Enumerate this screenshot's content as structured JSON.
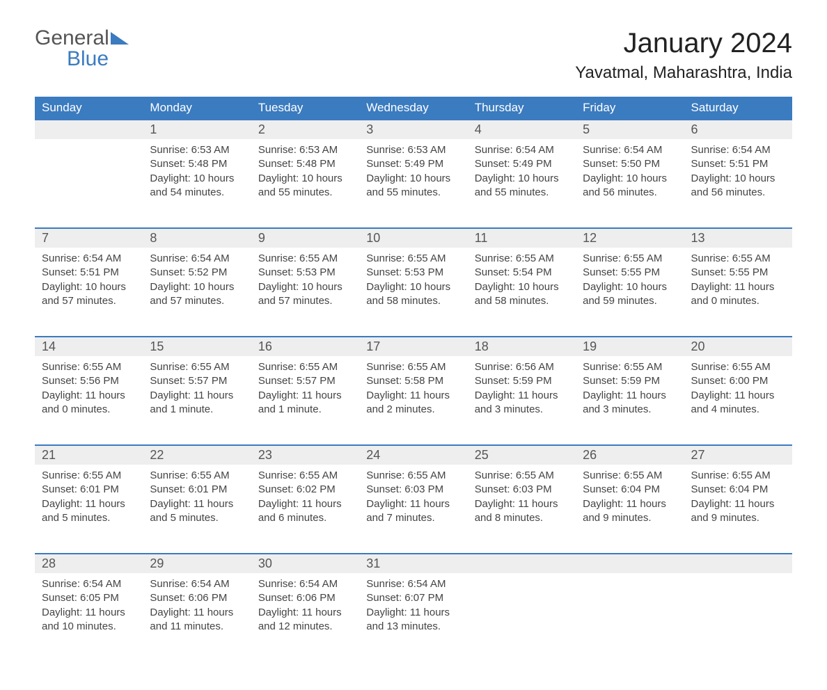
{
  "logo": {
    "line1": "General",
    "line2": "Blue"
  },
  "title": "January 2024",
  "location": "Yavatmal, Maharashtra, India",
  "colors": {
    "header_bg": "#3b7bbf",
    "header_text": "#ffffff",
    "daynum_bg": "#eeeeee",
    "row_border": "#3b7bbf",
    "body_text": "#444444",
    "logo_gray": "#555555",
    "logo_blue": "#3b7bbf"
  },
  "daysOfWeek": [
    "Sunday",
    "Monday",
    "Tuesday",
    "Wednesday",
    "Thursday",
    "Friday",
    "Saturday"
  ],
  "weeks": [
    [
      null,
      {
        "n": "1",
        "sr": "6:53 AM",
        "ss": "5:48 PM",
        "dl": "10 hours and 54 minutes."
      },
      {
        "n": "2",
        "sr": "6:53 AM",
        "ss": "5:48 PM",
        "dl": "10 hours and 55 minutes."
      },
      {
        "n": "3",
        "sr": "6:53 AM",
        "ss": "5:49 PM",
        "dl": "10 hours and 55 minutes."
      },
      {
        "n": "4",
        "sr": "6:54 AM",
        "ss": "5:49 PM",
        "dl": "10 hours and 55 minutes."
      },
      {
        "n": "5",
        "sr": "6:54 AM",
        "ss": "5:50 PM",
        "dl": "10 hours and 56 minutes."
      },
      {
        "n": "6",
        "sr": "6:54 AM",
        "ss": "5:51 PM",
        "dl": "10 hours and 56 minutes."
      }
    ],
    [
      {
        "n": "7",
        "sr": "6:54 AM",
        "ss": "5:51 PM",
        "dl": "10 hours and 57 minutes."
      },
      {
        "n": "8",
        "sr": "6:54 AM",
        "ss": "5:52 PM",
        "dl": "10 hours and 57 minutes."
      },
      {
        "n": "9",
        "sr": "6:55 AM",
        "ss": "5:53 PM",
        "dl": "10 hours and 57 minutes."
      },
      {
        "n": "10",
        "sr": "6:55 AM",
        "ss": "5:53 PM",
        "dl": "10 hours and 58 minutes."
      },
      {
        "n": "11",
        "sr": "6:55 AM",
        "ss": "5:54 PM",
        "dl": "10 hours and 58 minutes."
      },
      {
        "n": "12",
        "sr": "6:55 AM",
        "ss": "5:55 PM",
        "dl": "10 hours and 59 minutes."
      },
      {
        "n": "13",
        "sr": "6:55 AM",
        "ss": "5:55 PM",
        "dl": "11 hours and 0 minutes."
      }
    ],
    [
      {
        "n": "14",
        "sr": "6:55 AM",
        "ss": "5:56 PM",
        "dl": "11 hours and 0 minutes."
      },
      {
        "n": "15",
        "sr": "6:55 AM",
        "ss": "5:57 PM",
        "dl": "11 hours and 1 minute."
      },
      {
        "n": "16",
        "sr": "6:55 AM",
        "ss": "5:57 PM",
        "dl": "11 hours and 1 minute."
      },
      {
        "n": "17",
        "sr": "6:55 AM",
        "ss": "5:58 PM",
        "dl": "11 hours and 2 minutes."
      },
      {
        "n": "18",
        "sr": "6:56 AM",
        "ss": "5:59 PM",
        "dl": "11 hours and 3 minutes."
      },
      {
        "n": "19",
        "sr": "6:55 AM",
        "ss": "5:59 PM",
        "dl": "11 hours and 3 minutes."
      },
      {
        "n": "20",
        "sr": "6:55 AM",
        "ss": "6:00 PM",
        "dl": "11 hours and 4 minutes."
      }
    ],
    [
      {
        "n": "21",
        "sr": "6:55 AM",
        "ss": "6:01 PM",
        "dl": "11 hours and 5 minutes."
      },
      {
        "n": "22",
        "sr": "6:55 AM",
        "ss": "6:01 PM",
        "dl": "11 hours and 5 minutes."
      },
      {
        "n": "23",
        "sr": "6:55 AM",
        "ss": "6:02 PM",
        "dl": "11 hours and 6 minutes."
      },
      {
        "n": "24",
        "sr": "6:55 AM",
        "ss": "6:03 PM",
        "dl": "11 hours and 7 minutes."
      },
      {
        "n": "25",
        "sr": "6:55 AM",
        "ss": "6:03 PM",
        "dl": "11 hours and 8 minutes."
      },
      {
        "n": "26",
        "sr": "6:55 AM",
        "ss": "6:04 PM",
        "dl": "11 hours and 9 minutes."
      },
      {
        "n": "27",
        "sr": "6:55 AM",
        "ss": "6:04 PM",
        "dl": "11 hours and 9 minutes."
      }
    ],
    [
      {
        "n": "28",
        "sr": "6:54 AM",
        "ss": "6:05 PM",
        "dl": "11 hours and 10 minutes."
      },
      {
        "n": "29",
        "sr": "6:54 AM",
        "ss": "6:06 PM",
        "dl": "11 hours and 11 minutes."
      },
      {
        "n": "30",
        "sr": "6:54 AM",
        "ss": "6:06 PM",
        "dl": "11 hours and 12 minutes."
      },
      {
        "n": "31",
        "sr": "6:54 AM",
        "ss": "6:07 PM",
        "dl": "11 hours and 13 minutes."
      },
      null,
      null,
      null
    ]
  ],
  "labels": {
    "sunrise": "Sunrise:",
    "sunset": "Sunset:",
    "daylight": "Daylight:"
  }
}
